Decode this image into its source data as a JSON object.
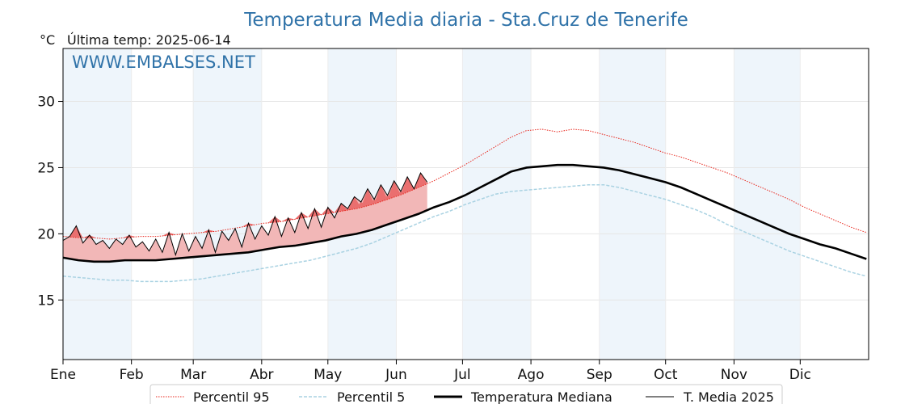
{
  "chart_data": {
    "type": "line",
    "title": "Temperatura Media diaria - Sta.Cruz de Tenerife",
    "unit_label": "°C",
    "last_temp_label": "Última temp: 2025-06-14",
    "watermark": "WWW.EMBALSES.NET",
    "ylim": [
      10.5,
      34
    ],
    "yticks": [
      15,
      20,
      25,
      30
    ],
    "xlim": [
      1,
      366
    ],
    "month_labels": [
      "Ene",
      "Feb",
      "Mar",
      "Abr",
      "May",
      "Jun",
      "Jul",
      "Ago",
      "Sep",
      "Oct",
      "Nov",
      "Dic"
    ],
    "month_start_days": [
      1,
      32,
      60,
      91,
      121,
      152,
      182,
      213,
      244,
      274,
      305,
      335
    ],
    "grid": true,
    "shaded_months": [
      "Ene",
      "Mar",
      "May",
      "Jul",
      "Sep",
      "Nov"
    ],
    "legend_position": "bottom",
    "colors": {
      "p95": "#e8261c",
      "p5": "#a9d2e2",
      "median": "#000000",
      "y2025": "#000000",
      "fill_above": "#f2b7b7",
      "fill_above_p95": "#ea6f6f",
      "band": "#eef5fb",
      "title": "#2f72a8"
    },
    "series": [
      {
        "name": "Percentil 95",
        "style": "dotted-red",
        "x_step": 7,
        "x": [
          1,
          8,
          15,
          22,
          29,
          36,
          43,
          50,
          57,
          64,
          71,
          78,
          85,
          92,
          99,
          106,
          113,
          120,
          127,
          134,
          141,
          148,
          155,
          162,
          169,
          176,
          183,
          190,
          197,
          204,
          211,
          218,
          225,
          232,
          239,
          246,
          253,
          260,
          267,
          274,
          281,
          288,
          295,
          302,
          309,
          316,
          323,
          330,
          337,
          344,
          351,
          358,
          365
        ],
        "values": [
          19.8,
          19.7,
          19.7,
          19.6,
          19.7,
          19.8,
          19.8,
          19.9,
          20.0,
          20.1,
          20.2,
          20.4,
          20.6,
          20.8,
          20.9,
          21.1,
          21.3,
          21.5,
          21.7,
          21.9,
          22.2,
          22.6,
          23.0,
          23.5,
          24.0,
          24.6,
          25.2,
          25.9,
          26.6,
          27.3,
          27.8,
          27.9,
          27.7,
          27.9,
          27.8,
          27.5,
          27.2,
          26.9,
          26.5,
          26.1,
          25.8,
          25.4,
          25.0,
          24.6,
          24.1,
          23.6,
          23.1,
          22.6,
          22.0,
          21.5,
          21.0,
          20.5,
          20.1
        ]
      },
      {
        "name": "Percentil 5",
        "style": "dashed-lightblue",
        "x_step": 7,
        "x": [
          1,
          8,
          15,
          22,
          29,
          36,
          43,
          50,
          57,
          64,
          71,
          78,
          85,
          92,
          99,
          106,
          113,
          120,
          127,
          134,
          141,
          148,
          155,
          162,
          169,
          176,
          183,
          190,
          197,
          204,
          211,
          218,
          225,
          232,
          239,
          246,
          253,
          260,
          267,
          274,
          281,
          288,
          295,
          302,
          309,
          316,
          323,
          330,
          337,
          344,
          351,
          358,
          365
        ],
        "values": [
          16.8,
          16.7,
          16.6,
          16.5,
          16.5,
          16.4,
          16.4,
          16.4,
          16.5,
          16.6,
          16.8,
          17.0,
          17.2,
          17.4,
          17.6,
          17.8,
          18.0,
          18.3,
          18.6,
          18.9,
          19.3,
          19.8,
          20.3,
          20.8,
          21.3,
          21.7,
          22.2,
          22.6,
          23.0,
          23.2,
          23.3,
          23.4,
          23.5,
          23.6,
          23.7,
          23.7,
          23.5,
          23.2,
          22.9,
          22.6,
          22.2,
          21.8,
          21.3,
          20.7,
          20.2,
          19.7,
          19.2,
          18.7,
          18.3,
          17.9,
          17.5,
          17.1,
          16.8
        ]
      },
      {
        "name": "Temperatura Mediana",
        "style": "solid-black-thick",
        "x_step": 7,
        "x": [
          1,
          8,
          15,
          22,
          29,
          36,
          43,
          50,
          57,
          64,
          71,
          78,
          85,
          92,
          99,
          106,
          113,
          120,
          127,
          134,
          141,
          148,
          155,
          162,
          169,
          176,
          183,
          190,
          197,
          204,
          211,
          218,
          225,
          232,
          239,
          246,
          253,
          260,
          267,
          274,
          281,
          288,
          295,
          302,
          309,
          316,
          323,
          330,
          337,
          344,
          351,
          358,
          365
        ],
        "values": [
          18.2,
          18.0,
          17.9,
          17.9,
          18.0,
          18.0,
          18.0,
          18.1,
          18.2,
          18.3,
          18.4,
          18.5,
          18.6,
          18.8,
          19.0,
          19.1,
          19.3,
          19.5,
          19.8,
          20.0,
          20.3,
          20.7,
          21.1,
          21.5,
          22.0,
          22.4,
          22.9,
          23.5,
          24.1,
          24.7,
          25.0,
          25.1,
          25.2,
          25.2,
          25.1,
          25.0,
          24.8,
          24.5,
          24.2,
          23.9,
          23.5,
          23.0,
          22.5,
          22.0,
          21.5,
          21.0,
          20.5,
          20.0,
          19.6,
          19.2,
          18.9,
          18.5,
          18.1
        ]
      },
      {
        "name": "T. Media 2025",
        "style": "solid-black-thin",
        "x_step": 3,
        "x": [
          1,
          4,
          7,
          10,
          13,
          16,
          19,
          22,
          25,
          28,
          31,
          34,
          37,
          40,
          43,
          46,
          49,
          52,
          55,
          58,
          61,
          64,
          67,
          70,
          73,
          76,
          79,
          82,
          85,
          88,
          91,
          94,
          97,
          100,
          103,
          106,
          109,
          112,
          115,
          118,
          121,
          124,
          127,
          130,
          133,
          136,
          139,
          142,
          145,
          148,
          151,
          154,
          157,
          160,
          163,
          166
        ],
        "values": [
          19.5,
          19.8,
          20.6,
          19.3,
          19.9,
          19.2,
          19.5,
          18.9,
          19.6,
          19.2,
          19.9,
          19.0,
          19.4,
          18.7,
          19.6,
          18.6,
          20.1,
          18.4,
          20.0,
          18.7,
          19.8,
          18.9,
          20.3,
          18.6,
          20.2,
          19.5,
          20.4,
          19.0,
          20.8,
          19.6,
          20.6,
          19.9,
          21.3,
          19.8,
          21.2,
          20.1,
          21.6,
          20.4,
          21.9,
          20.5,
          22.0,
          21.2,
          22.3,
          21.9,
          22.8,
          22.4,
          23.4,
          22.6,
          23.7,
          22.9,
          24.0,
          23.2,
          24.3,
          23.4,
          24.6,
          23.9
        ]
      }
    ]
  }
}
